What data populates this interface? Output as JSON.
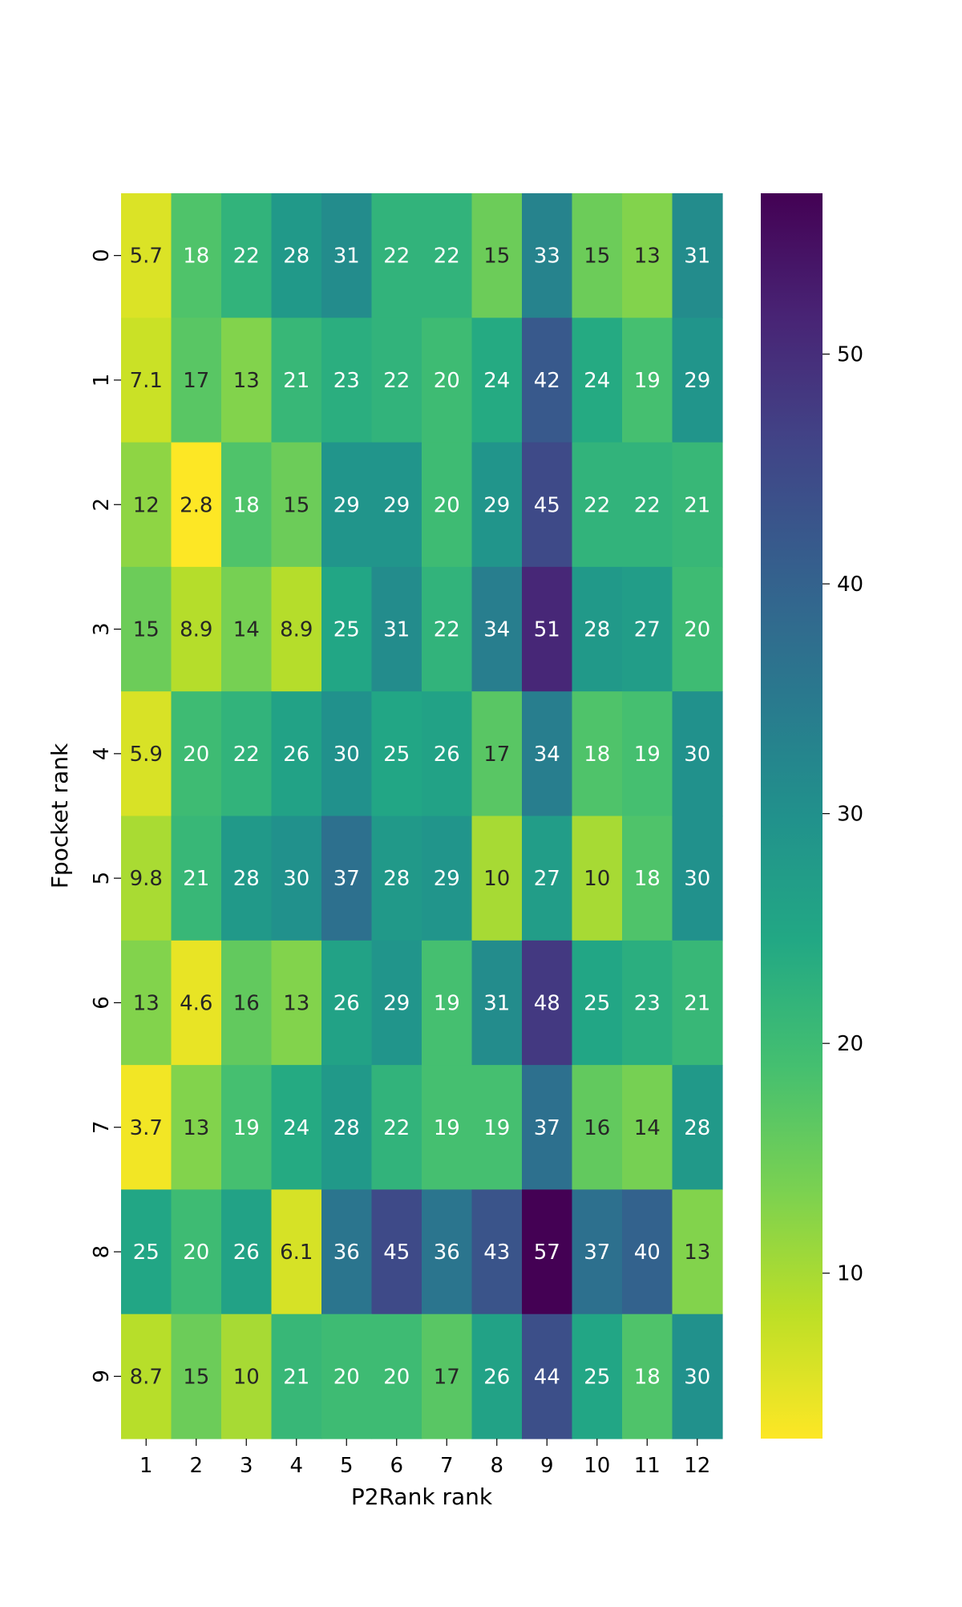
{
  "chart_data": {
    "type": "heatmap",
    "title": "",
    "xlabel": "P2Rank rank",
    "ylabel": "Fpocket rank",
    "x_categories": [
      "1",
      "2",
      "3",
      "4",
      "5",
      "6",
      "7",
      "8",
      "9",
      "10",
      "11",
      "12"
    ],
    "y_categories": [
      "0",
      "1",
      "2",
      "3",
      "4",
      "5",
      "6",
      "7",
      "8",
      "9"
    ],
    "values": [
      [
        5.7,
        18,
        22,
        28,
        31,
        22,
        22,
        15,
        33,
        15,
        13,
        31
      ],
      [
        7.1,
        17,
        13,
        21,
        23,
        22,
        20,
        24,
        42,
        24,
        19,
        29
      ],
      [
        12,
        2.8,
        18,
        15,
        29,
        29,
        20,
        29,
        45,
        22,
        22,
        21
      ],
      [
        15,
        8.9,
        14,
        8.9,
        25,
        31,
        22,
        34,
        51,
        28,
        27,
        20
      ],
      [
        5.9,
        20,
        22,
        26,
        30,
        25,
        26,
        17,
        34,
        18,
        19,
        30
      ],
      [
        9.8,
        21,
        28,
        30,
        37,
        28,
        29,
        10,
        27,
        10,
        18,
        30
      ],
      [
        13,
        4.6,
        16,
        13,
        26,
        29,
        19,
        31,
        48,
        25,
        23,
        21
      ],
      [
        3.7,
        13,
        19,
        24,
        28,
        22,
        19,
        19,
        37,
        16,
        14,
        28
      ],
      [
        25,
        20,
        26,
        6.1,
        36,
        45,
        36,
        43,
        57,
        37,
        40,
        13
      ],
      [
        8.7,
        15,
        10,
        21,
        20,
        20,
        17,
        26,
        44,
        25,
        18,
        30
      ]
    ],
    "colormap": "viridis (reversed)",
    "color_range": [
      2.8,
      57
    ],
    "colorbar_ticks": [
      "10",
      "20",
      "30",
      "40",
      "50"
    ],
    "annotations": true,
    "grid": false
  }
}
